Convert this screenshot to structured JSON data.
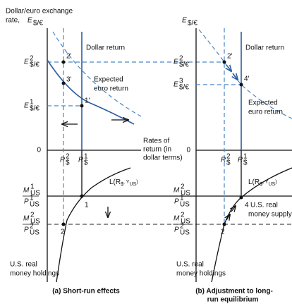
{
  "panel_a": {
    "axis_title": {
      "line1": "Dollar/euro exchange",
      "line2": "rate, ",
      "symbol": "E",
      "sub": "$/€"
    },
    "e2": {
      "symbol": "E",
      "sup": "2",
      "sub": "$/€"
    },
    "e1": {
      "symbol": "E",
      "sup": "1",
      "sub": "$/€"
    },
    "zero": "0",
    "dollar_return": "Dollar return",
    "expected_return": [
      "Expected",
      "euro return"
    ],
    "points": [
      "2'",
      "3'",
      "1'",
      "1",
      "2"
    ],
    "r2": {
      "symbol": "R",
      "sup": "2",
      "sub": "$"
    },
    "r1": {
      "symbol": "R",
      "sup": "1",
      "sub": "$"
    },
    "x_axis_title": [
      "Rates of",
      "return (in",
      "dollar terms)"
    ],
    "m1p1": {
      "num": {
        "symbol": "M",
        "sup": "1",
        "sub": "US"
      },
      "den": {
        "symbol": "P",
        "sup": "1",
        "sub": "US"
      }
    },
    "m2p2": {
      "num": {
        "symbol": "M",
        "sup": "2",
        "sub": "US"
      },
      "den": {
        "symbol": "P",
        "sup": "2",
        "sub": "US"
      }
    },
    "money_demand": {
      "a": "L(R",
      "b": "$",
      "c": ", Y",
      "d": "US",
      "e": ")"
    },
    "holdings": [
      "U.S. real",
      "money holdings"
    ],
    "caption": "(a) Short-run effects"
  },
  "panel_b": {
    "axis_title": {
      "symbol": "E",
      "sub": "$/€"
    },
    "e2": {
      "symbol": "E",
      "sup": "2",
      "sub": "$/€"
    },
    "e3": {
      "symbol": "E",
      "sup": "3",
      "sub": "$/€"
    },
    "zero": "0",
    "dollar_return": "Dollar return",
    "expected_return": [
      "Expected",
      "euro return"
    ],
    "points": [
      "2'",
      "4'",
      "4",
      "2"
    ],
    "r2": {
      "symbol": "R",
      "sup": "2",
      "sub": "$"
    },
    "r1": {
      "symbol": "R",
      "sup": "1",
      "sub": "$"
    },
    "m2p1": {
      "num": {
        "symbol": "M",
        "sup": "2",
        "sub": "US"
      },
      "den": {
        "symbol": "P",
        "sup": "1",
        "sub": "US"
      }
    },
    "m2p2": {
      "num": {
        "symbol": "M",
        "sup": "2",
        "sub": "US"
      },
      "den": {
        "symbol": "P",
        "sup": "2",
        "sub": "US"
      }
    },
    "money_demand": {
      "a": "L(R",
      "b": "$",
      "c": ", Y",
      "d": "US",
      "e": ")"
    },
    "money_supply": [
      "U.S. real",
      "money supply"
    ],
    "holdings": [
      "U.S. real",
      "money holdings"
    ],
    "caption": [
      "(b) Adjustment to long-",
      "run equilibrium"
    ]
  }
}
